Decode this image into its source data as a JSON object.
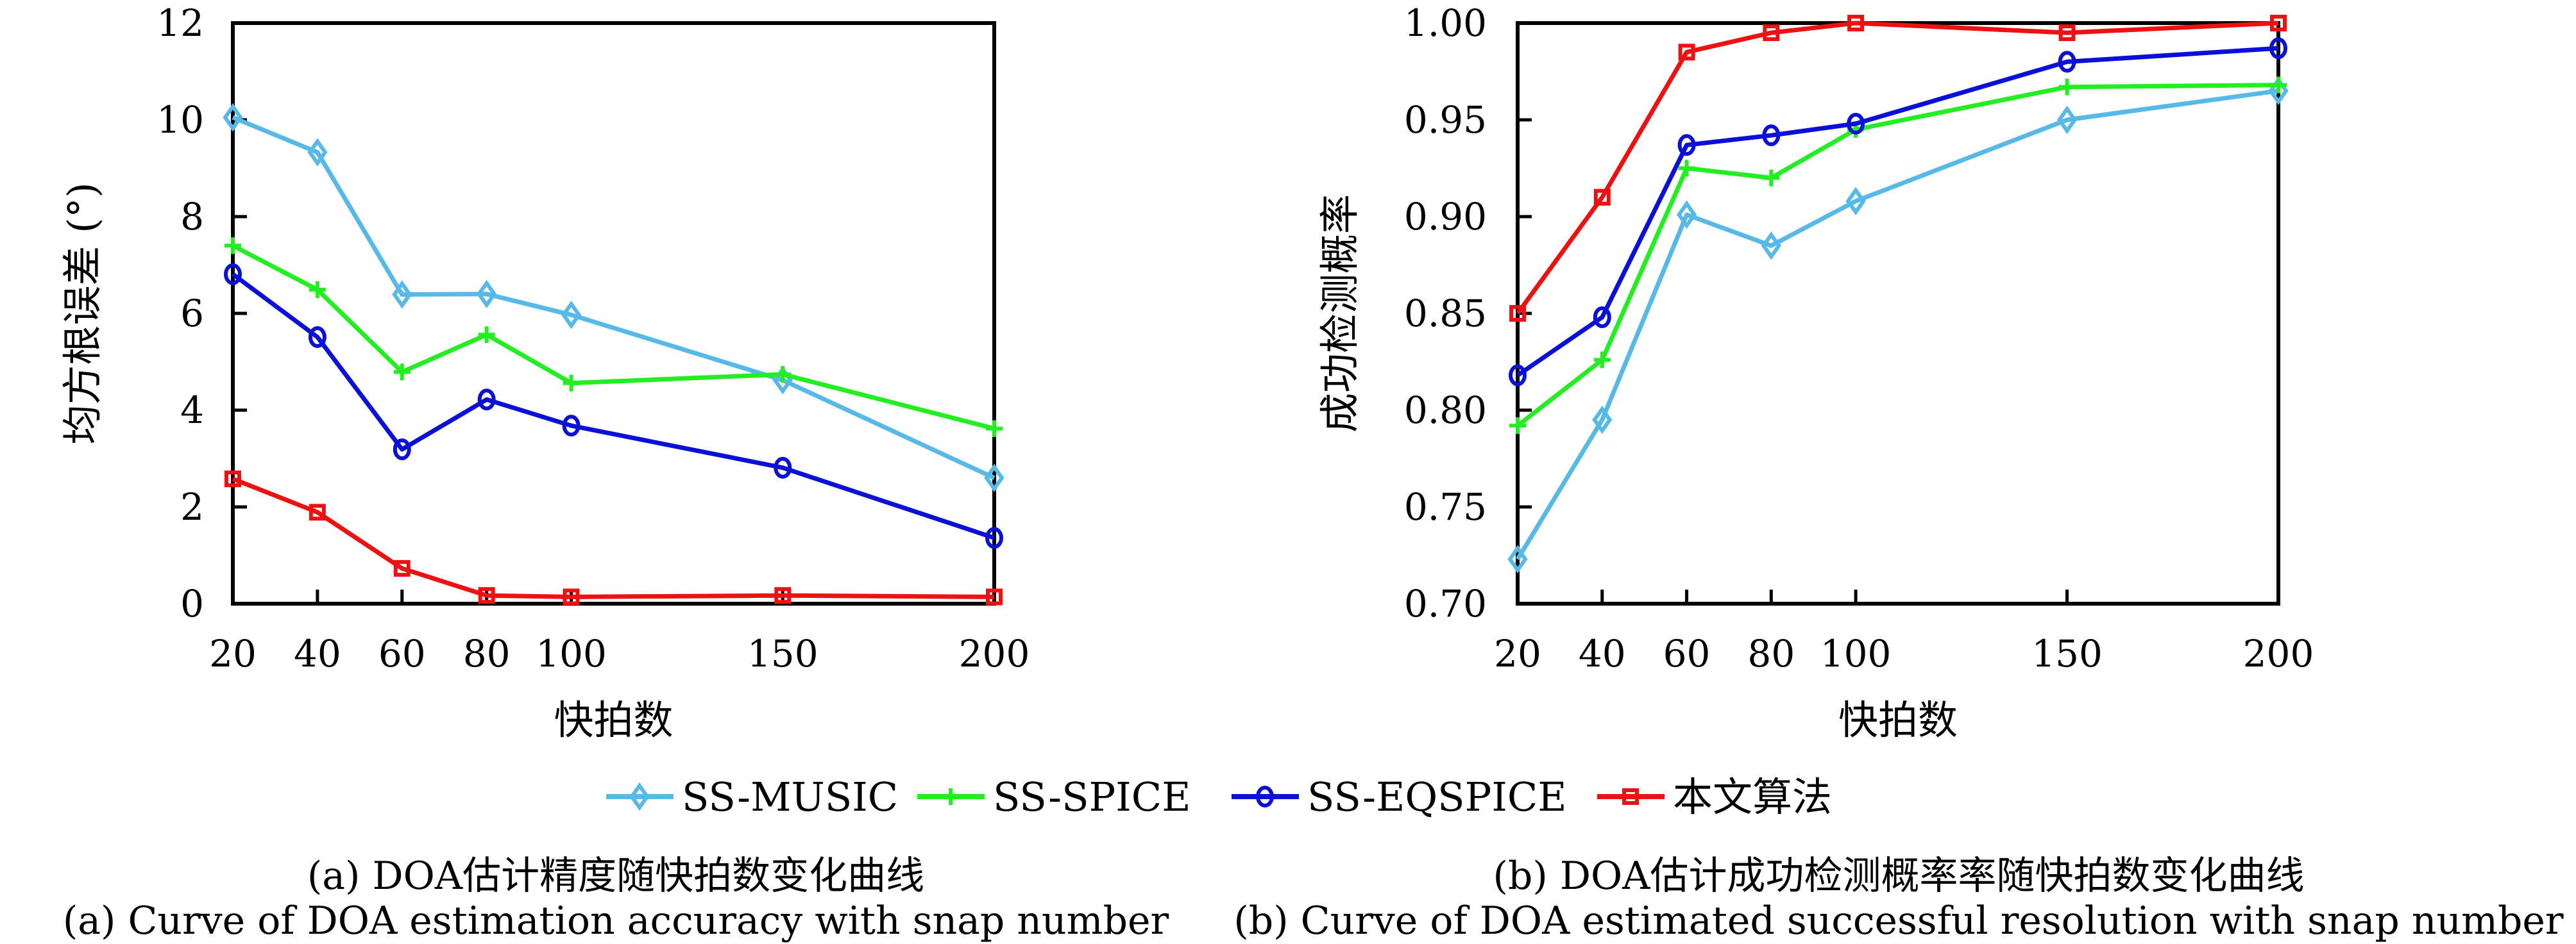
{
  "legend": [
    {
      "name": "SS-MUSIC",
      "color": "#56B9E8",
      "marker": "diamond"
    },
    {
      "name": "SS-SPICE",
      "color": "#22EE22",
      "marker": "plus"
    },
    {
      "name": "SS-EQSPICE",
      "color": "#0A10D8",
      "marker": "circle"
    },
    {
      "name": "本文算法",
      "color": "#EE1111",
      "marker": "square"
    }
  ],
  "captions": {
    "a_cn": "(a) DOA估计精度随快拍数变化曲线",
    "b_cn": "(b) DOA估计成功检测概率率随快拍数变化曲线",
    "a_en": "(a) Curve of DOA estimation accuracy with snap number",
    "b_en": "(b) Curve of DOA estimated successful resolution with snap number"
  },
  "chart_data": [
    {
      "type": "line",
      "title": "(a) DOA估计精度随快拍数变化曲线",
      "xlabel": "快拍数",
      "ylabel": "均方根误差 (°)",
      "x": [
        20,
        40,
        60,
        80,
        100,
        150,
        200
      ],
      "x_positions_note": "categorical-like spacing",
      "xticks": [
        "20",
        "40",
        "60",
        "80",
        "100",
        "150",
        "200"
      ],
      "xlim": [
        20,
        200
      ],
      "ylim": [
        0,
        12
      ],
      "yticks": [
        "0",
        "2",
        "4",
        "6",
        "8",
        "10",
        "12"
      ],
      "ytick_values": [
        0,
        2,
        4,
        6,
        8,
        10,
        12
      ],
      "grid": false,
      "legend_position": "bottom-center (shared)",
      "series": [
        {
          "name": "SS-MUSIC",
          "values": [
            10.05,
            9.33,
            6.39,
            6.4,
            5.97,
            4.62,
            2.6
          ]
        },
        {
          "name": "SS-SPICE",
          "values": [
            7.4,
            6.49,
            4.79,
            5.56,
            4.56,
            4.74,
            3.62
          ]
        },
        {
          "name": "SS-EQSPICE",
          "values": [
            6.81,
            5.51,
            3.19,
            4.22,
            3.68,
            2.81,
            1.36
          ]
        },
        {
          "name": "本文算法",
          "values": [
            2.58,
            1.89,
            0.73,
            0.17,
            0.14,
            0.17,
            0.14
          ]
        }
      ]
    },
    {
      "type": "line",
      "title": "(b) DOA估计成功检测概率率随快拍数变化曲线",
      "xlabel": "快拍数",
      "ylabel": "成功检测概率",
      "x": [
        20,
        40,
        60,
        80,
        100,
        150,
        200
      ],
      "xticks": [
        "20",
        "40",
        "60",
        "80",
        "100",
        "150",
        "200"
      ],
      "xlim": [
        20,
        200
      ],
      "ylim": [
        0.7,
        1.0
      ],
      "yticks": [
        "0.70",
        "0.75",
        "0.80",
        "0.85",
        "0.90",
        "0.95",
        "1.00"
      ],
      "ytick_values": [
        0.7,
        0.75,
        0.8,
        0.85,
        0.9,
        0.95,
        1.0
      ],
      "grid": false,
      "legend_position": "bottom-center (shared)",
      "series": [
        {
          "name": "SS-MUSIC",
          "values": [
            0.723,
            0.795,
            0.901,
            0.885,
            0.908,
            0.95,
            0.965
          ]
        },
        {
          "name": "SS-SPICE",
          "values": [
            0.792,
            0.826,
            0.925,
            0.92,
            0.945,
            0.967,
            0.968
          ]
        },
        {
          "name": "SS-EQSPICE",
          "values": [
            0.818,
            0.848,
            0.937,
            0.942,
            0.948,
            0.98,
            0.987
          ]
        },
        {
          "name": "本文算法",
          "values": [
            0.85,
            0.91,
            0.985,
            0.995,
            1.0,
            0.995,
            1.0
          ]
        }
      ]
    }
  ]
}
